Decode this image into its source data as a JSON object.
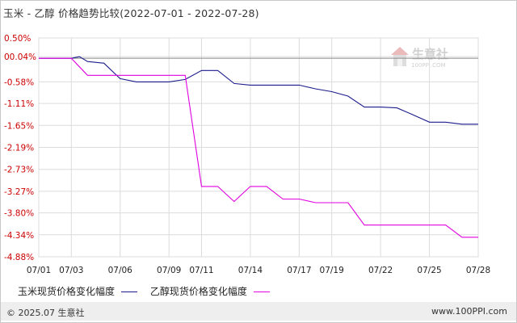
{
  "title": "玉米 - 乙醇 价格趋势比较(2022-07-01 - 2022-07-28)",
  "watermark": {
    "name": "生意社",
    "url": "100PPI.COM"
  },
  "footer": {
    "copyright": "© 2025.07 生意社",
    "site": "www.100PPI.com"
  },
  "legend": [
    {
      "label": "玉米现货价格变化幅度",
      "color": "#1b1b8c"
    },
    {
      "label": "乙醇现货价格变化幅度",
      "color": "#e000e0"
    }
  ],
  "chart_data": {
    "type": "line",
    "title": "玉米 - 乙醇 价格趋势比较(2022-07-01 - 2022-07-28)",
    "ylabel": "",
    "xlabel": "",
    "ylim": [
      -4.88,
      0.5
    ],
    "yticks": [
      0.5,
      0.04,
      -0.58,
      -1.11,
      -1.65,
      -2.19,
      -2.73,
      -3.27,
      -3.8,
      -4.34,
      -4.88
    ],
    "ytick_labels": [
      "0.50%",
      "00.04%",
      "-0.58%",
      "-1.11%",
      "-1.65%",
      "-2.19%",
      "-2.73%",
      "-3.27%",
      "-3.80%",
      "-4.34%",
      "-4.88%"
    ],
    "xlim": [
      1,
      28
    ],
    "xticks": [
      1,
      3,
      6,
      9,
      11,
      14,
      17,
      19,
      22,
      25,
      28
    ],
    "xtick_labels": [
      "07/01",
      "07/03",
      "07/06",
      "07/09",
      "07/11",
      "07/14",
      "07/17",
      "07/19",
      "07/22",
      "07/25",
      "07/28"
    ],
    "zero_line": 0,
    "series": [
      {
        "name": "玉米现货价格变化幅度",
        "color": "#1b1b8c",
        "points": [
          [
            1,
            0
          ],
          [
            3,
            0
          ],
          [
            3.5,
            0.04
          ],
          [
            4,
            -0.08
          ],
          [
            5,
            -0.12
          ],
          [
            6,
            -0.5
          ],
          [
            7,
            -0.58
          ],
          [
            8,
            -0.58
          ],
          [
            9,
            -0.58
          ],
          [
            10,
            -0.52
          ],
          [
            11,
            -0.3
          ],
          [
            12,
            -0.3
          ],
          [
            13,
            -0.62
          ],
          [
            14,
            -0.66
          ],
          [
            15,
            -0.66
          ],
          [
            16,
            -0.66
          ],
          [
            17,
            -0.66
          ],
          [
            18,
            -0.75
          ],
          [
            19,
            -0.82
          ],
          [
            20,
            -0.93
          ],
          [
            21,
            -1.2
          ],
          [
            22,
            -1.2
          ],
          [
            23,
            -1.22
          ],
          [
            24,
            -1.39
          ],
          [
            25,
            -1.57
          ],
          [
            26,
            -1.57
          ],
          [
            27,
            -1.62
          ],
          [
            28,
            -1.62
          ]
        ]
      },
      {
        "name": "乙醇现货价格变化幅度",
        "color": "#e000e0",
        "points": [
          [
            1,
            0
          ],
          [
            3,
            0
          ],
          [
            4,
            -0.42
          ],
          [
            5,
            -0.42
          ],
          [
            6,
            -0.42
          ],
          [
            7,
            -0.42
          ],
          [
            8,
            -0.42
          ],
          [
            9,
            -0.42
          ],
          [
            10,
            -0.42
          ],
          [
            11,
            -3.15
          ],
          [
            12,
            -3.15
          ],
          [
            13,
            -3.52
          ],
          [
            14,
            -3.15
          ],
          [
            15,
            -3.15
          ],
          [
            16,
            -3.46
          ],
          [
            17,
            -3.46
          ],
          [
            18,
            -3.55
          ],
          [
            19,
            -3.55
          ],
          [
            20,
            -3.55
          ],
          [
            21,
            -4.1
          ],
          [
            22,
            -4.1
          ],
          [
            23,
            -4.1
          ],
          [
            24,
            -4.1
          ],
          [
            25,
            -4.1
          ],
          [
            26,
            -4.1
          ],
          [
            27,
            -4.4
          ],
          [
            28,
            -4.4
          ]
        ]
      }
    ],
    "grid": true,
    "legend_position": "bottom-left"
  }
}
